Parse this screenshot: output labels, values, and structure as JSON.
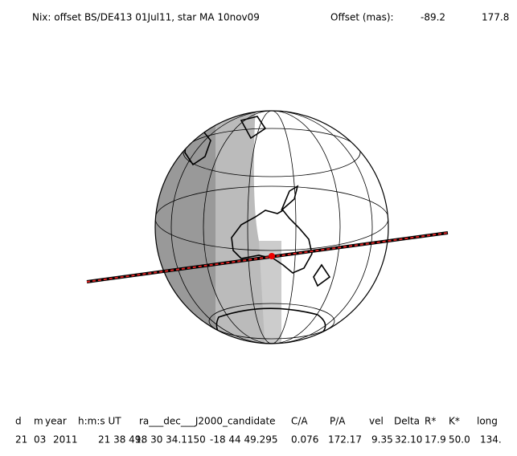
{
  "header": {
    "title": "Nix: offset BS/DE413 01Jul11, star MA 10nov09",
    "offset_label": "Offset (mas):",
    "offset_values": [
      "-89.2",
      "177.8"
    ]
  },
  "table": {
    "columns": [
      "d",
      "m",
      "year",
      "h:m:s UT",
      "ra___dec___J2000_candidate",
      "C/A",
      "P/A",
      "vel",
      "Delta",
      "R*",
      "K*",
      "long"
    ],
    "rows": [
      [
        "21",
        "03",
        "2011",
        "21 38 49.",
        "18 30 34.1150",
        "-18 44 49.295",
        "0.076",
        "172.17",
        "9.35",
        "32.10",
        "17.9",
        "50.0",
        "134."
      ]
    ]
  }
}
